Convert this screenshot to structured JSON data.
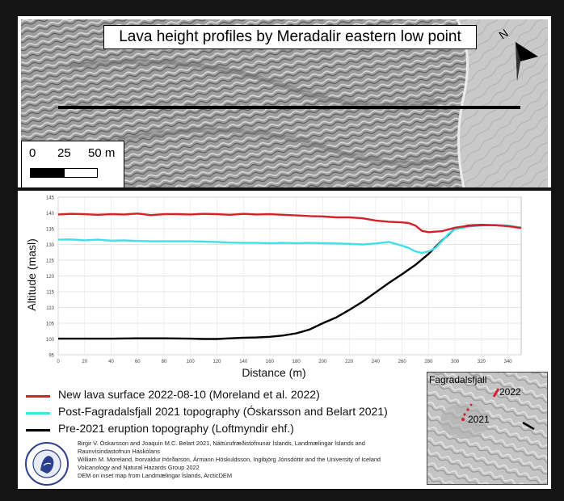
{
  "map": {
    "title": "Lava height profiles by Meradalir eastern low point",
    "north_label": "N",
    "scale_labels": [
      "0",
      "25",
      "50 m"
    ]
  },
  "chart_data": {
    "type": "line",
    "xlabel": "Distance (m)",
    "ylabel": "Altitude (masl)",
    "xlim": [
      0,
      350
    ],
    "ylim": [
      95,
      145
    ],
    "xticks": [
      0,
      20,
      40,
      60,
      80,
      100,
      120,
      140,
      160,
      180,
      200,
      220,
      240,
      260,
      280,
      300,
      320,
      340
    ],
    "yticks": [
      95,
      100,
      105,
      110,
      115,
      120,
      125,
      130,
      135,
      140,
      145
    ],
    "grid": true,
    "series": [
      {
        "name": "New lava surface 2022-08-10 (Moreland et al. 2022)",
        "color": "#d6202a",
        "x": [
          0,
          10,
          20,
          30,
          40,
          50,
          60,
          70,
          80,
          90,
          100,
          110,
          120,
          130,
          140,
          150,
          160,
          170,
          180,
          190,
          200,
          210,
          220,
          230,
          240,
          250,
          260,
          265,
          270,
          275,
          280,
          290,
          300,
          310,
          320,
          330,
          340,
          350
        ],
        "y": [
          139.5,
          139.7,
          139.6,
          139.4,
          139.6,
          139.5,
          139.8,
          139.3,
          139.6,
          139.6,
          139.5,
          139.7,
          139.6,
          139.4,
          139.7,
          139.5,
          139.6,
          139.4,
          139.2,
          139.0,
          138.9,
          138.6,
          138.6,
          138.3,
          137.6,
          137.2,
          137.0,
          136.8,
          136.0,
          134.3,
          133.9,
          134.2,
          135.3,
          135.9,
          136.1,
          136.1,
          135.8,
          135.2
        ]
      },
      {
        "name": "Post-Fagradalsfjall 2021 topography (Óskarsson and Belart 2021)",
        "color": "#3fe0e6",
        "x": [
          0,
          10,
          20,
          30,
          40,
          50,
          60,
          70,
          80,
          90,
          100,
          110,
          120,
          130,
          140,
          150,
          160,
          170,
          180,
          190,
          200,
          210,
          220,
          230,
          240,
          250,
          255,
          260,
          265,
          270,
          275,
          280,
          285,
          290,
          295,
          300,
          310,
          320,
          330,
          340,
          350
        ],
        "y": [
          131.5,
          131.6,
          131.3,
          131.5,
          131.2,
          131.3,
          131.1,
          131.0,
          131.0,
          131.0,
          131.0,
          130.9,
          130.8,
          130.6,
          130.5,
          130.5,
          130.4,
          130.5,
          130.4,
          130.5,
          130.4,
          130.3,
          130.2,
          130.0,
          130.3,
          130.8,
          130.2,
          129.6,
          128.9,
          127.8,
          127.3,
          127.8,
          128.8,
          131.0,
          133.3,
          134.8,
          135.7,
          136.0,
          136.2,
          136.0,
          135.3
        ]
      },
      {
        "name": "Pre-2021 eruption topography (Loftmyndir ehf.)",
        "color": "#000000",
        "x": [
          0,
          20,
          40,
          60,
          80,
          100,
          110,
          120,
          130,
          140,
          150,
          160,
          170,
          180,
          190,
          200,
          210,
          220,
          230,
          240,
          250,
          260,
          270,
          280,
          290,
          300,
          310,
          320,
          330,
          340,
          350
        ],
        "y": [
          100.1,
          100.1,
          100.1,
          100.2,
          100.2,
          100.1,
          100.0,
          100.0,
          100.2,
          100.4,
          100.5,
          100.7,
          101.1,
          101.8,
          103.0,
          105.0,
          106.8,
          109.2,
          111.8,
          114.8,
          117.8,
          120.6,
          123.5,
          127.0,
          131.2,
          135.0,
          136.0,
          136.2,
          136.1,
          135.9,
          135.3
        ]
      }
    ]
  },
  "inset": {
    "title": "Fagradalsfjall",
    "labels": [
      "2022",
      "2021"
    ]
  },
  "credits": [
    "Birgir V. Óskarsson and Joaquín M.C. Belart 2021, Náttúrufræðistofnunar Íslands, Landmælingar Íslands and",
    "Raunvísindastofnun Háskólans",
    "William M. Moreland, Þorvaldur Þórðarson, Ármann Höskuldsson, Ingibjörg Jónsdóttir and the University of Iceland",
    "Volcanology and Natural Hazards Group 2022",
    "DEM on inset map from Landmælingar Íslands, ArcticDEM"
  ],
  "colors": {
    "new_lava": "#d6202a",
    "post_2021": "#3fe0e6",
    "pre_2021": "#000000"
  }
}
